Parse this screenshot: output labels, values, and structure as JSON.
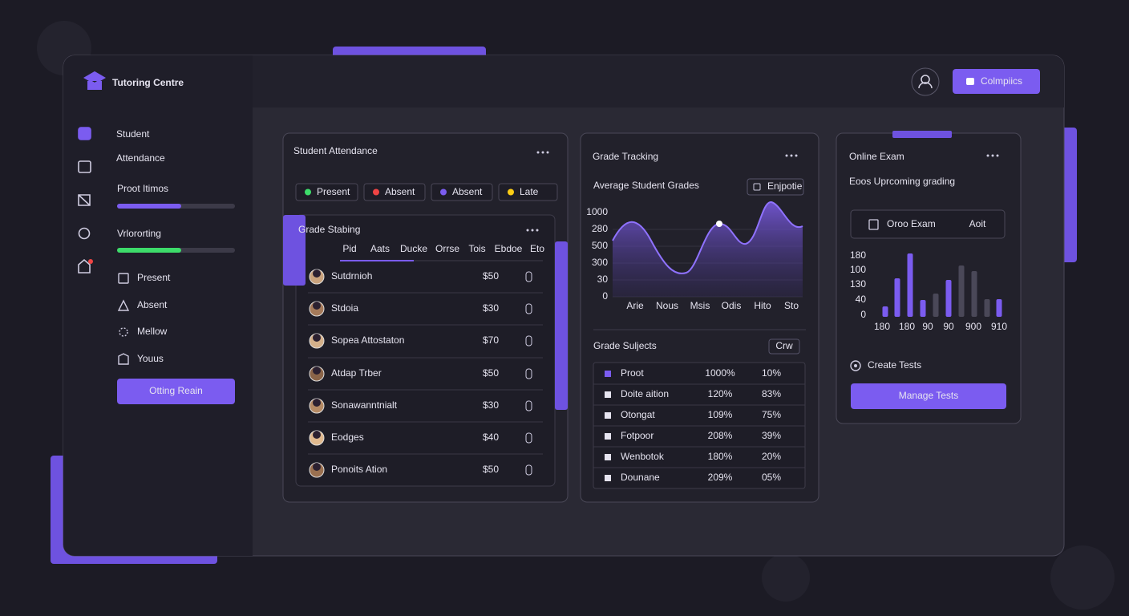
{
  "brand": "Tutoring Centre",
  "header": {
    "button": "Colmpiics"
  },
  "sidebar": {
    "title": [
      "Student",
      "Attendance"
    ],
    "progress": [
      "Proot Itimos",
      "Vrlororting"
    ],
    "menu": [
      "Present",
      "Absent",
      "Mellow",
      "Youus"
    ],
    "button": "Otting Reain"
  },
  "attendance": {
    "title": "Student Attendance",
    "chips": [
      "Present",
      "Absent",
      "Absent",
      "Late"
    ],
    "table": {
      "title": "Grade Stabing",
      "columns": [
        "Pid",
        "Aats",
        "Ducke",
        "Orrse",
        "Tois",
        "Ebdoe",
        "Eto"
      ],
      "rows": [
        [
          "Sutdrnioh",
          "$50"
        ],
        [
          "Stdoia",
          "$30"
        ],
        [
          "Sopea  Attostaton",
          "$70"
        ],
        [
          "Atdap Trber",
          "$50"
        ],
        [
          "Sonawanntnialt",
          "$30"
        ],
        [
          "Eodges",
          "$40"
        ],
        [
          "Ponoits Ation",
          "$50"
        ]
      ]
    }
  },
  "grades": {
    "title": "Grade Tracking",
    "subtitle": "Average Student Grades",
    "button": "Enjpotie",
    "y_labels": [
      "1000",
      "280",
      "500",
      "300",
      "30",
      "0"
    ],
    "x_labels": [
      "Arie",
      "Nous",
      "Msis",
      "Odis",
      "Hito",
      "Sto"
    ],
    "subjects": {
      "title": "Grade Suljects",
      "button": "Crw",
      "rows": [
        [
          "Proot",
          "1000%",
          "10%"
        ],
        [
          "Doite aition",
          "120%",
          "83%"
        ],
        [
          "Otongat",
          "109%",
          "75%"
        ],
        [
          "Fotpoor",
          "208%",
          "39%"
        ],
        [
          "Wenbotok",
          "180%",
          "20%"
        ],
        [
          "Dounane",
          "209%",
          "05%"
        ]
      ]
    }
  },
  "exam": {
    "title": "Online Exam",
    "subtitle": "Eoos Uprcoming grading",
    "item": {
      "name": "Oroo Exam",
      "action": "Aoit"
    },
    "y_labels": [
      "180",
      "100",
      "130",
      "40",
      "0"
    ],
    "x_labels": [
      "180",
      "180",
      "90",
      "90",
      "900",
      "910"
    ],
    "link": "Create Tests",
    "button": "Manage Tests"
  }
}
